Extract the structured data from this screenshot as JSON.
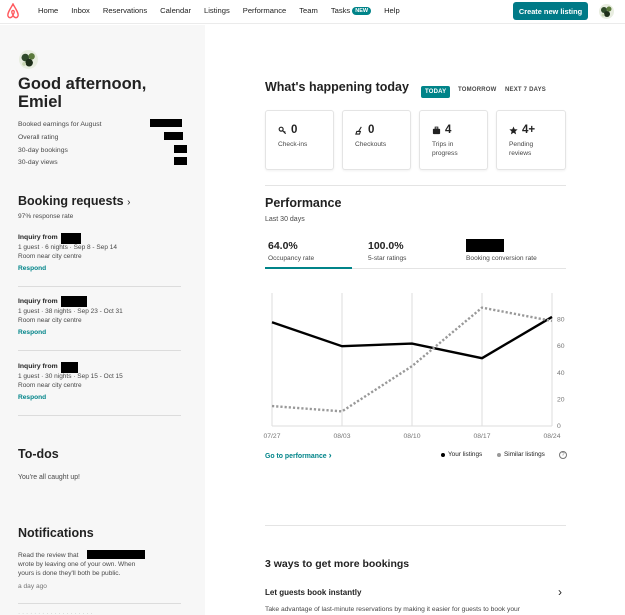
{
  "nav": {
    "items": [
      "Home",
      "Inbox",
      "Reservations",
      "Calendar",
      "Listings",
      "Performance",
      "Team",
      "Tasks",
      "Help"
    ],
    "tasks_badge": "NEW",
    "create_label": "Create new listing"
  },
  "sidebar": {
    "greeting": "Good afternoon, Emiel",
    "stats": [
      "Booked earnings for August",
      "Overall rating",
      "30-day bookings",
      "30-day views"
    ],
    "booking": {
      "title": "Booking requests",
      "response_rate": "97% response rate",
      "inquiries": [
        {
          "title": "Inquiry from",
          "details": "1 guest · 6 nights · Sep 8 - Sep 14",
          "listing": "Room near city centre",
          "action": "Respond"
        },
        {
          "title": "Inquiry from",
          "details": "1 guest · 38 nights · Sep 23 - Oct 31",
          "listing": "Room near city centre",
          "action": "Respond"
        },
        {
          "title": "Inquiry from",
          "details": "1 guest · 30 nights · Sep 15 - Oct 15",
          "listing": "Room near city centre",
          "action": "Respond"
        }
      ]
    },
    "todos": {
      "title": "To-dos",
      "status": "You're all caught up!"
    },
    "notifications": {
      "title": "Notifications",
      "text1": "Read the review that",
      "text2": "wrote by leaving one of your own. When",
      "text3": "yours is done they'll both be public.",
      "time": "a day ago"
    }
  },
  "today": {
    "title": "What's happening today",
    "tabs": [
      "TODAY",
      "TOMORROW",
      "NEXT 7 DAYS"
    ],
    "cards": [
      {
        "value": "0",
        "label": "Check-ins",
        "icon": "key-icon"
      },
      {
        "value": "0",
        "label": "Checkouts",
        "icon": "broom-icon"
      },
      {
        "value": "4",
        "label": "Trips in progress",
        "icon": "suitcase-icon"
      },
      {
        "value": "4+",
        "label": "Pending reviews",
        "icon": "star-icon"
      }
    ]
  },
  "performance": {
    "title": "Performance",
    "period": "Last 30 days",
    "metrics": [
      {
        "value": "64.0%",
        "label": "Occupancy rate"
      },
      {
        "value": "100.0%",
        "label": "5-star ratings"
      },
      {
        "value": "",
        "label": "Booking conversion rate"
      }
    ],
    "goto": "Go to performance",
    "legend": [
      "Your listings",
      "Similar listings"
    ],
    "colors": {
      "yours": "#000000",
      "similar": "#999999",
      "accent": "#008489"
    }
  },
  "chart_data": {
    "type": "line",
    "x": [
      "07/27",
      "08/03",
      "08/10",
      "08/17",
      "08/24"
    ],
    "series": [
      {
        "name": "Your listings",
        "values": [
          78,
          60,
          62,
          51,
          82
        ]
      },
      {
        "name": "Similar listings",
        "values": [
          15,
          11,
          45,
          89,
          79
        ]
      }
    ],
    "ylim": [
      0,
      100
    ],
    "yticks": [
      0,
      20,
      40,
      60,
      80
    ]
  },
  "growth": {
    "title": "3 ways to get more bookings",
    "item_title": "Let guests book instantly",
    "item_text": "Take advantage of last-minute reservations by making it easier for guests to book your"
  }
}
